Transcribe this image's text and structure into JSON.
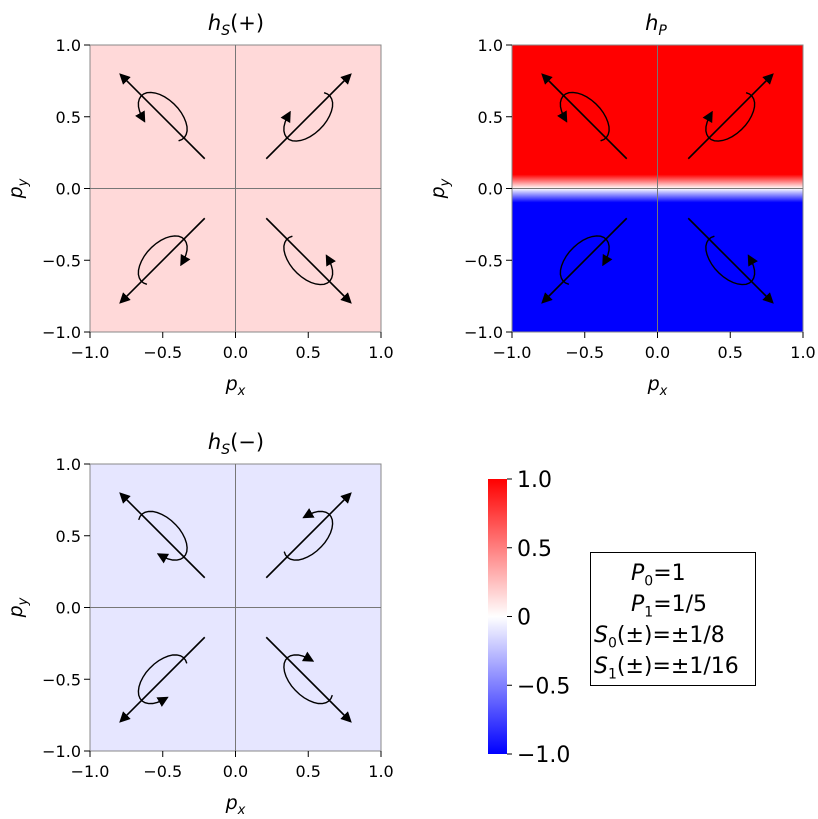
{
  "panels": [
    {
      "id": "hS_plus",
      "title": {
        "main": "h",
        "sub": "S",
        "suffix": "(+)"
      },
      "colormap_value": 0.15,
      "color_mode": "uniform",
      "arrows": {
        "top_left": "cw",
        "top_right": "ccw",
        "bottom_left": "ccw",
        "bottom_right": "cw"
      }
    },
    {
      "id": "hP",
      "title": {
        "main": "h",
        "sub": "P",
        "suffix": ""
      },
      "colormap_value": 1.0,
      "color_mode": "sign_of_py",
      "arrows": {
        "top_left": "cw",
        "top_right": "ccw",
        "bottom_left": "ccw",
        "bottom_right": "cw"
      }
    },
    {
      "id": "hS_minus",
      "title": {
        "main": "h",
        "sub": "S",
        "suffix": "(−)"
      },
      "colormap_value": -0.1,
      "color_mode": "uniform",
      "arrows": {
        "top_left": "ccw",
        "top_right": "cw",
        "bottom_left": "cw",
        "bottom_right": "ccw"
      }
    }
  ],
  "axes": {
    "xlabel": {
      "main": "p",
      "sub": "x"
    },
    "ylabel": {
      "main": "p",
      "sub": "y"
    },
    "xlim": [
      -1.0,
      1.0
    ],
    "ylim": [
      -1.0,
      1.0
    ],
    "xticks": [
      -1.0,
      -0.5,
      0.0,
      0.5,
      1.0
    ],
    "yticks": [
      -1.0,
      -0.5,
      0.0,
      0.5,
      1.0
    ],
    "tick_labels": [
      "−1.0",
      "−0.5",
      "0.0",
      "0.5",
      "1.0"
    ]
  },
  "colorbar": {
    "range": [
      -1.0,
      1.0
    ],
    "ticks": [
      1.0,
      0.5,
      0,
      -0.5,
      -1.0
    ],
    "tick_labels": [
      "1.0",
      "0.5",
      "0",
      "−0.5",
      "−1.0"
    ],
    "colors": {
      "max": "#ff0000",
      "mid": "#ffffff",
      "min": "#0000ff"
    }
  },
  "chart_data": [
    {
      "type": "heatmap",
      "title": "hS(+)",
      "xlabel": "px",
      "ylabel": "py",
      "xlim": [
        -1.0,
        1.0
      ],
      "ylim": [
        -1.0,
        1.0
      ],
      "value_approx": 0.15,
      "color": "light red"
    },
    {
      "type": "heatmap",
      "title": "hP",
      "xlabel": "px",
      "ylabel": "py",
      "xlim": [
        -1.0,
        1.0
      ],
      "ylim": [
        -1.0,
        1.0
      ],
      "value_approx": "+1.0 for py>0, −1.0 for py<0",
      "color": "red upper half, blue lower half"
    },
    {
      "type": "heatmap",
      "title": "hS(−)",
      "xlabel": "px",
      "ylabel": "py",
      "xlim": [
        -1.0,
        1.0
      ],
      "ylim": [
        -1.0,
        1.0
      ],
      "value_approx": -0.1,
      "color": "light blue"
    }
  ],
  "parameters": [
    {
      "sym": "P",
      "sub": "0",
      "arg": "",
      "val": "=1"
    },
    {
      "sym": "P",
      "sub": "1",
      "arg": "",
      "val": "=1/5"
    },
    {
      "sym": "S",
      "sub": "0",
      "arg": "(±)",
      "val": "=±1/8"
    },
    {
      "sym": "S",
      "sub": "1",
      "arg": "(±)",
      "val": "=±1/16"
    }
  ]
}
